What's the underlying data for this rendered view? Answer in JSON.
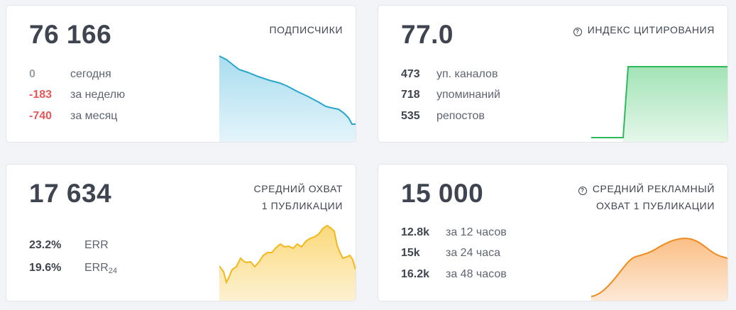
{
  "subscribers": {
    "value": "76 166",
    "label": "ПОДПИСЧИКИ",
    "rows": [
      {
        "value": "0",
        "desc": "сегодня"
      },
      {
        "value": "-183",
        "desc": "за неделю"
      },
      {
        "value": "-740",
        "desc": "за месяц"
      }
    ],
    "color": "#2aa5cc"
  },
  "citation": {
    "value": "77.0",
    "label": "ИНДЕКС ЦИТИРОВАНИЯ",
    "help_icon": "question-circle-icon",
    "rows": [
      {
        "value": "473",
        "desc": "уп. каналов"
      },
      {
        "value": "718",
        "desc": "упоминаний"
      },
      {
        "value": "535",
        "desc": "репостов"
      }
    ],
    "color": "#2dbb5a"
  },
  "reach": {
    "value": "17 634",
    "label_line1": "СРЕДНИЙ ОХВАТ",
    "label_line2": "1 ПУБЛИКАЦИИ",
    "rows": [
      {
        "value": "23.2%",
        "desc": "ERR"
      },
      {
        "value": "19.6%",
        "desc": "ERR",
        "sub": "24"
      }
    ],
    "color": "#f2b81c"
  },
  "ad_reach": {
    "value": "15 000",
    "label_line1": "СРЕДНИЙ РЕКЛАМНЫЙ",
    "label_line2": "ОХВАТ 1 ПУБЛИКАЦИИ",
    "help_icon": "question-circle-icon",
    "rows": [
      {
        "value": "12.8k",
        "desc": "за 12 часов"
      },
      {
        "value": "15k",
        "desc": "за 24 часа"
      },
      {
        "value": "16.2k",
        "desc": "за 48 часов"
      }
    ],
    "color": "#f08a1c"
  }
}
